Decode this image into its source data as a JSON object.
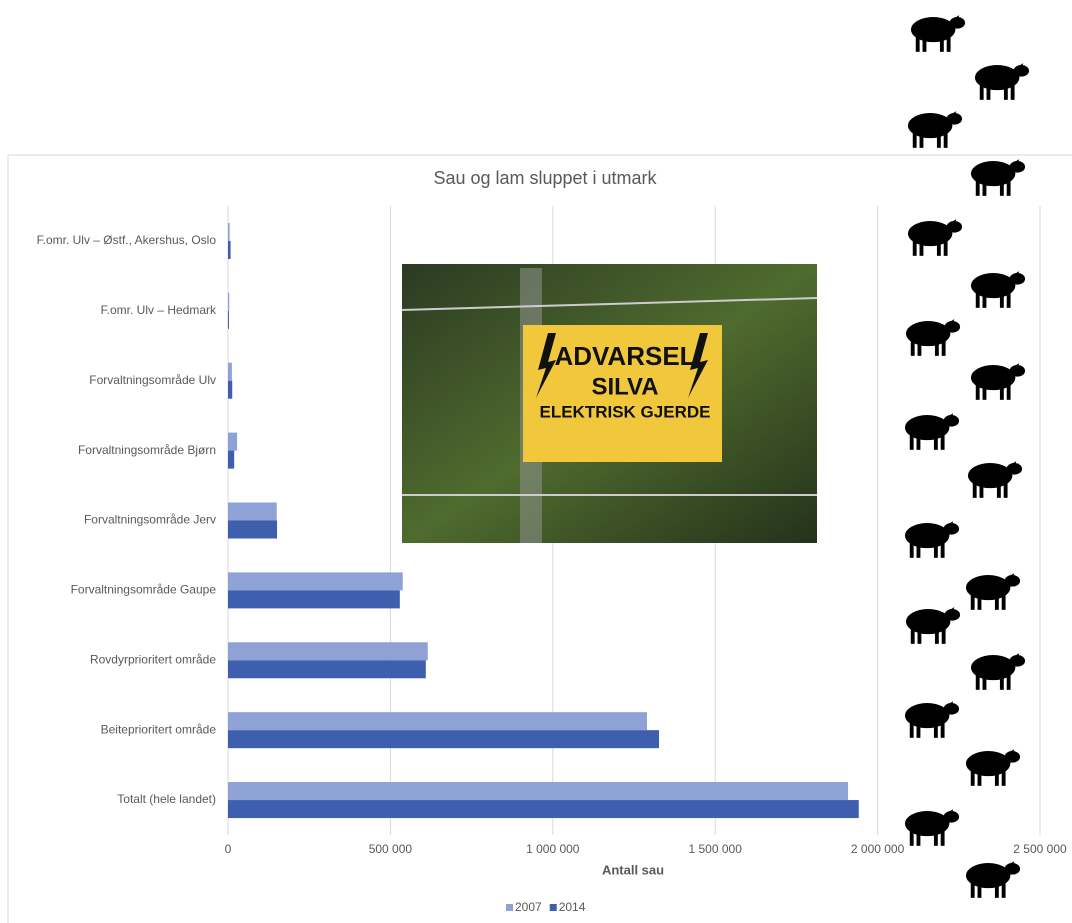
{
  "chart_data": {
    "type": "bar",
    "orientation": "horizontal",
    "title": "Sau og lam sluppet i utmark",
    "x_label": "Antall sau",
    "categories": [
      "F.omr. Ulv – Østf., Akershus, Oslo",
      "F.omr. Ulv – Hedmark",
      "Forvaltningsområde Ulv",
      "Forvaltningsområde Bjørn",
      "Forvaltningsområde Jerv",
      "Forvaltningsområde Gaupe",
      "Rovdyrprioritert område",
      "Beiteprioritert område",
      "Totalt (hele landet)"
    ],
    "series": [
      {
        "name": "2007",
        "color": "#8fa2d6",
        "values": [
          5000,
          4000,
          12000,
          28000,
          150000,
          538000,
          615000,
          1290000,
          1909000
        ]
      },
      {
        "name": "2014",
        "color": "#3e5eae",
        "values": [
          8000,
          3000,
          13000,
          19000,
          151000,
          529000,
          609000,
          1327000,
          1942000
        ]
      }
    ],
    "xlim": [
      0,
      2500000
    ],
    "xticks": [
      0,
      {
        "value": 500000,
        "label": "500 000"
      },
      {
        "value": 1000000,
        "label": "1 000 000"
      },
      {
        "value": 1500000,
        "label": "1 500 000"
      },
      {
        "value": 2000000,
        "label": "2 000 000"
      },
      {
        "value": 2500000,
        "label": "2 500 000"
      }
    ],
    "grid": true,
    "legend": "bottom"
  },
  "photo": {
    "sign_lines": [
      "ADVARSEL",
      "SILVA",
      "ELEKTRISK GJERDE"
    ]
  }
}
